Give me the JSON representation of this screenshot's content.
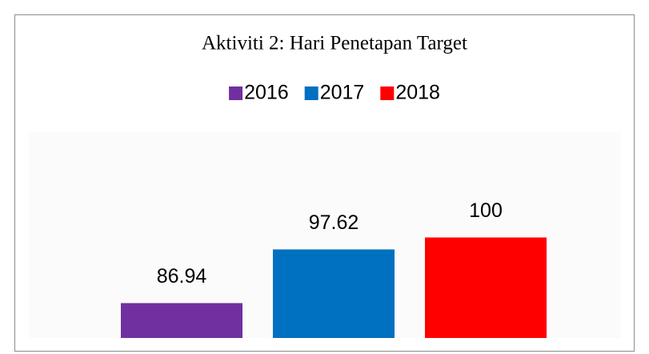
{
  "chart_data": {
    "type": "bar",
    "title": "Aktiviti 2: Hari Penetapan Target",
    "categories": [
      null
    ],
    "series": [
      {
        "name": "2016",
        "color": "#7030a0",
        "values": [
          86.94
        ]
      },
      {
        "name": "2017",
        "color": "#0070c0",
        "values": [
          97.62
        ]
      },
      {
        "name": "2018",
        "color": "#ff0000",
        "values": [
          100
        ]
      }
    ],
    "ylim": [
      80,
      120
    ],
    "grid": false,
    "legend": "top",
    "data_labels": true
  }
}
